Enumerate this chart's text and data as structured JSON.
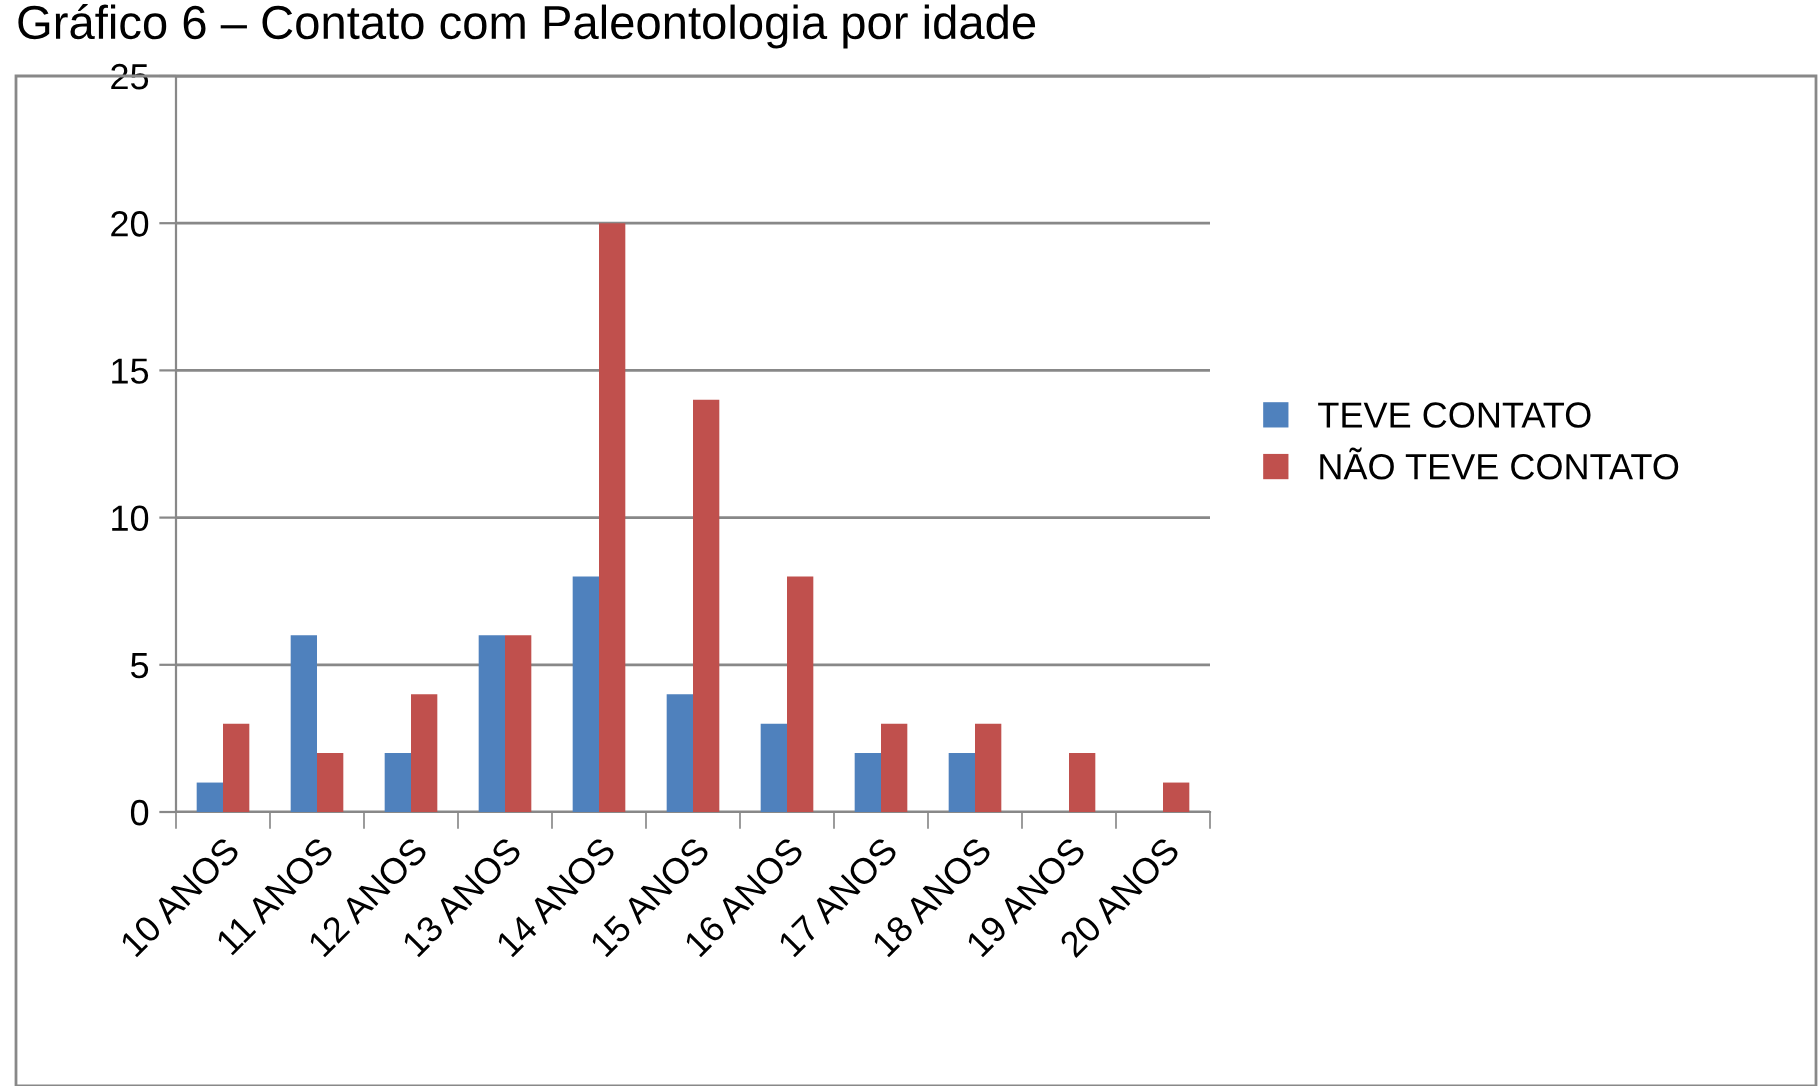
{
  "chart_data": {
    "type": "bar",
    "title": "Gráfico 6 – Contato com Paleontologia por idade",
    "categories": [
      "10 ANOS",
      "11 ANOS",
      "12 ANOS",
      "13 ANOS",
      "14 ANOS",
      "15 ANOS",
      "16 ANOS",
      "17 ANOS",
      "18 ANOS",
      "19 ANOS",
      "20 ANOS"
    ],
    "series": [
      {
        "name": "TEVE CONTATO",
        "color": "#4f81bd",
        "values": [
          1,
          6,
          2,
          6,
          8,
          4,
          3,
          2,
          2,
          0,
          0
        ]
      },
      {
        "name": "NÃO TEVE CONTATO",
        "color": "#c0504d",
        "values": [
          3,
          2,
          4,
          6,
          20,
          14,
          8,
          3,
          3,
          2,
          1
        ]
      }
    ],
    "ylim": [
      0,
      25
    ],
    "yticks": [
      0,
      5,
      10,
      15,
      20,
      25
    ],
    "grid": "y",
    "legend": "right"
  }
}
